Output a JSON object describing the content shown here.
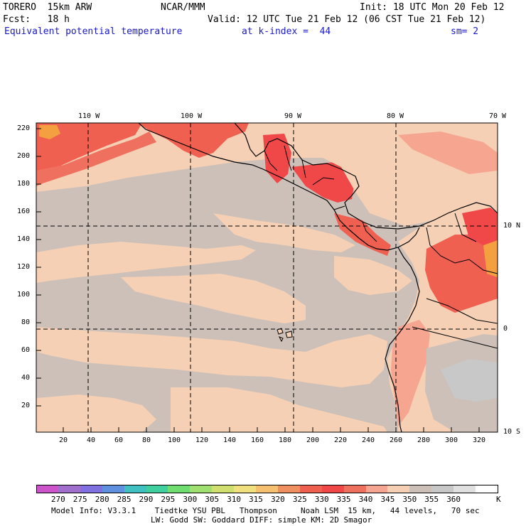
{
  "header": {
    "model": "TORERO  15km ARW",
    "org": "NCAR/MMM",
    "init": "Init: 18 UTC Mon 20 Feb 12",
    "fcst": "Fcst:   18 h",
    "valid": "Valid: 12 UTC Tue 21 Feb 12 (06 CST Tue 21 Feb 12)",
    "field": "Equivalent potential temperature",
    "level": "at k-index =  44",
    "smooth": "sm= 2"
  },
  "map": {
    "top_lon_labels": [
      "110 W",
      "100 W",
      "90 W",
      "80 W",
      "70 W"
    ],
    "right_lat_labels": [
      "10 N",
      "0",
      "10 S"
    ],
    "left_ticks": [
      "220",
      "200",
      "180",
      "160",
      "140",
      "120",
      "100",
      "80",
      "60",
      "40",
      "20"
    ],
    "bottom_ticks": [
      "20",
      "40",
      "60",
      "80",
      "100",
      "120",
      "140",
      "160",
      "180",
      "200",
      "220",
      "240",
      "260",
      "280",
      "300",
      "320"
    ]
  },
  "colorbar": {
    "labels": [
      "270",
      "275",
      "280",
      "285",
      "290",
      "295",
      "300",
      "305",
      "310",
      "315",
      "320",
      "325",
      "330",
      "335",
      "340",
      "345",
      "350",
      "355",
      "360"
    ],
    "unit": "K",
    "colors": [
      "#cc55cc",
      "#a070cc",
      "#8070e0",
      "#6090e0",
      "#40c0c0",
      "#40d0a0",
      "#70dd70",
      "#a0e070",
      "#d0e070",
      "#f0e080",
      "#f5c070",
      "#f09060",
      "#f06050",
      "#f04848",
      "#f07060",
      "#f5a590",
      "#f5d0b5",
      "#ccc0b8",
      "#c8c8c8",
      "#e0e0e0",
      "#ffffff"
    ]
  },
  "footer": {
    "line1": "Model Info: V3.3.1    Tiedtke YSU PBL   Thompson     Noah LSM  15 km,   44 levels,   70 sec",
    "line2": "LW: Godd SW: Goddard DIFF: simple KM: 2D Smagor"
  }
}
